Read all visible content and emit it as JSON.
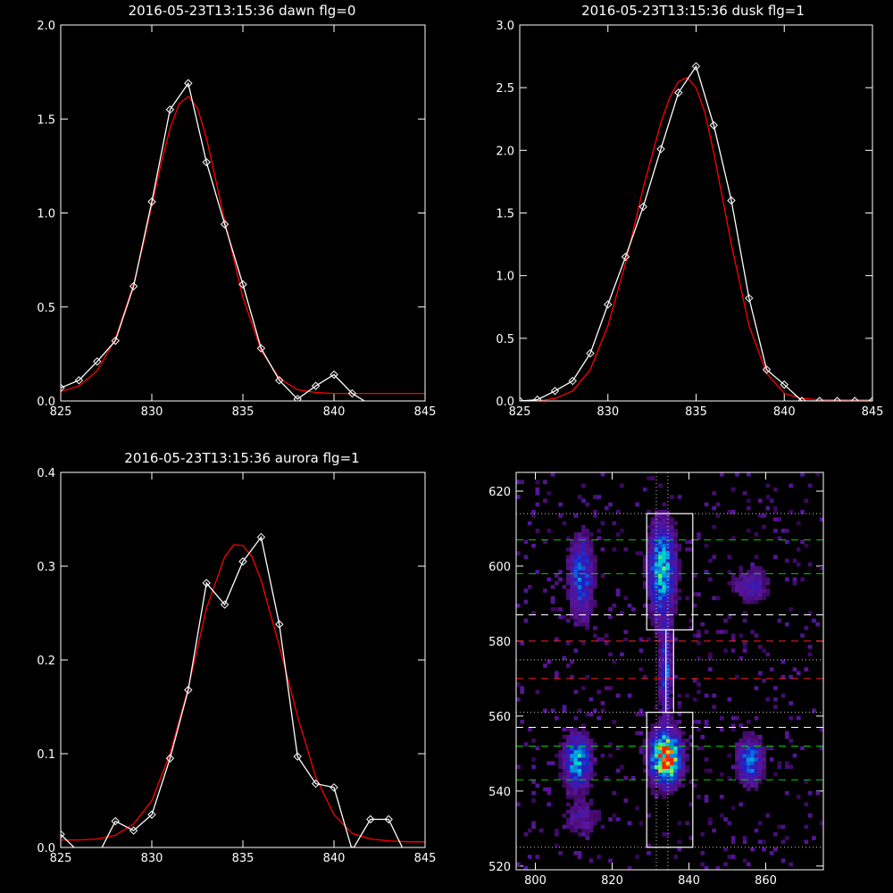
{
  "chart_data": [
    {
      "type": "line",
      "title": "2016-05-23T13:15:36 dawn flg=0",
      "xlim": [
        825,
        845
      ],
      "ylim": [
        0,
        2.0
      ],
      "xticks": [
        825,
        830,
        835,
        840,
        845
      ],
      "yticks": [
        0.0,
        0.5,
        1.0,
        1.5,
        2.0
      ],
      "xtick_labels": [
        "825",
        "830",
        "835",
        "840",
        "845"
      ],
      "ytick_labels": [
        "0.0",
        "0.5",
        "1.0",
        "1.5",
        "2.0"
      ],
      "series": [
        {
          "color": "#ffffff",
          "marker": "diamond",
          "x": [
            825,
            826,
            827,
            828,
            829,
            830,
            831,
            832,
            833,
            834,
            835,
            836,
            837,
            838,
            839,
            840,
            841,
            842,
            843,
            844,
            845
          ],
          "y": [
            0.07,
            0.11,
            0.21,
            0.32,
            0.61,
            1.06,
            1.55,
            1.69,
            1.27,
            0.94,
            0.62,
            0.28,
            0.11,
            0.01,
            0.08,
            0.14,
            0.04,
            -0.02,
            -0.02,
            -0.02,
            -0.02
          ]
        },
        {
          "color": "#ff0000",
          "marker": "none",
          "x": [
            825,
            826,
            827,
            828,
            829,
            829.5,
            830,
            830.5,
            831,
            831.5,
            832,
            832.5,
            833,
            833.5,
            834,
            835,
            836,
            837,
            838,
            839,
            840,
            841,
            842,
            843,
            844,
            845
          ],
          "y": [
            0.05,
            0.08,
            0.16,
            0.33,
            0.62,
            0.82,
            1.04,
            1.26,
            1.45,
            1.58,
            1.62,
            1.56,
            1.4,
            1.18,
            0.96,
            0.55,
            0.27,
            0.12,
            0.06,
            0.045,
            0.04,
            0.04,
            0.04,
            0.04,
            0.04,
            0.04
          ]
        }
      ]
    },
    {
      "type": "line",
      "title": "2016-05-23T13:15:36 dusk flg=1",
      "xlim": [
        825,
        845
      ],
      "ylim": [
        0,
        3.0
      ],
      "xticks": [
        825,
        830,
        835,
        840,
        845
      ],
      "yticks": [
        0.0,
        0.5,
        1.0,
        1.5,
        2.0,
        2.5,
        3.0
      ],
      "xtick_labels": [
        "825",
        "830",
        "835",
        "840",
        "845"
      ],
      "ytick_labels": [
        "0.0",
        "0.5",
        "1.0",
        "1.5",
        "2.0",
        "2.5",
        "3.0"
      ],
      "series": [
        {
          "color": "#ffffff",
          "marker": "diamond",
          "x": [
            825,
            826,
            827,
            828,
            829,
            830,
            831,
            832,
            833,
            834,
            835,
            836,
            837,
            838,
            839,
            840,
            841,
            842,
            843,
            844,
            845
          ],
          "y": [
            0.0,
            0.01,
            0.08,
            0.16,
            0.38,
            0.77,
            1.15,
            1.55,
            2.01,
            2.46,
            2.67,
            2.2,
            1.6,
            0.82,
            0.25,
            0.13,
            0.0,
            0.0,
            0.0,
            0.0,
            0.0
          ]
        },
        {
          "color": "#ff0000",
          "marker": "none",
          "x": [
            825,
            826,
            827,
            828,
            829,
            830,
            831,
            832,
            833,
            833.5,
            834,
            834.5,
            835,
            835.5,
            836,
            837,
            838,
            839,
            840,
            841,
            842,
            843,
            844,
            845
          ],
          "y": [
            0.0,
            0.0,
            0.02,
            0.08,
            0.25,
            0.6,
            1.1,
            1.7,
            2.22,
            2.42,
            2.55,
            2.58,
            2.5,
            2.3,
            1.98,
            1.25,
            0.6,
            0.22,
            0.06,
            0.02,
            0.01,
            0.01,
            0.01,
            0.01
          ]
        }
      ]
    },
    {
      "type": "line",
      "title": "2016-05-23T13:15:36 aurora flg=1",
      "xlim": [
        825,
        845
      ],
      "ylim": [
        0,
        0.4
      ],
      "xticks": [
        825,
        830,
        835,
        840,
        845
      ],
      "yticks": [
        0.0,
        0.1,
        0.2,
        0.3,
        0.4
      ],
      "xtick_labels": [
        "825",
        "830",
        "835",
        "840",
        "845"
      ],
      "ytick_labels": [
        "0.0",
        "0.1",
        "0.2",
        "0.3",
        "0.4"
      ],
      "series": [
        {
          "color": "#ffffff",
          "marker": "diamond",
          "x": [
            825,
            826,
            827,
            828,
            829,
            830,
            831,
            832,
            833,
            834,
            835,
            836,
            837,
            838,
            839,
            840,
            841,
            842,
            843,
            844,
            845
          ],
          "y": [
            0.014,
            -0.005,
            -0.01,
            0.028,
            0.018,
            0.035,
            0.095,
            0.168,
            0.282,
            0.259,
            0.305,
            0.331,
            0.238,
            0.097,
            0.068,
            0.064,
            -0.003,
            0.03,
            0.03,
            -0.01,
            -0.02
          ]
        },
        {
          "color": "#ff0000",
          "marker": "none",
          "x": [
            825,
            826,
            827,
            828,
            829,
            830,
            831,
            832,
            833,
            834,
            834.5,
            835,
            835.5,
            836,
            837,
            838,
            839,
            840,
            841,
            842,
            843,
            844,
            845
          ],
          "y": [
            0.008,
            0.008,
            0.009,
            0.013,
            0.025,
            0.05,
            0.1,
            0.17,
            0.255,
            0.31,
            0.323,
            0.322,
            0.31,
            0.285,
            0.215,
            0.14,
            0.075,
            0.035,
            0.015,
            0.009,
            0.007,
            0.006,
            0.006
          ]
        }
      ]
    },
    {
      "type": "heatmap",
      "xlim": [
        795,
        875
      ],
      "ylim": [
        519,
        625
      ],
      "xticks": [
        800,
        820,
        840,
        860
      ],
      "yticks": [
        520,
        540,
        560,
        580,
        600,
        620
      ],
      "xtick_labels": [
        "800",
        "820",
        "840",
        "860"
      ],
      "ytick_labels": [
        "520",
        "540",
        "560",
        "580",
        "600",
        "620"
      ],
      "colors": {
        "white_line": "#ffffff",
        "green_line": "#00d000",
        "red_line": "#ff2020",
        "dotted_line": "#cccccc"
      },
      "horizontal_lines": [
        {
          "y": 614,
          "style": "dotted",
          "color": "#cccccc"
        },
        {
          "y": 607,
          "style": "dashed",
          "color": "#00d000"
        },
        {
          "y": 598,
          "style": "dashed",
          "color": "#00d000"
        },
        {
          "y": 587,
          "style": "dashed",
          "color": "#ffffff"
        },
        {
          "y": 580,
          "style": "dashed",
          "color": "#ff2020"
        },
        {
          "y": 575,
          "style": "dotted",
          "color": "#cccccc"
        },
        {
          "y": 570,
          "style": "dashed",
          "color": "#ff2020"
        },
        {
          "y": 561,
          "style": "dotted",
          "color": "#cccccc"
        },
        {
          "y": 557,
          "style": "dashed",
          "color": "#ffffff"
        },
        {
          "y": 552,
          "style": "dashed",
          "color": "#00d000"
        },
        {
          "y": 543,
          "style": "dashed",
          "color": "#00d000"
        },
        {
          "y": 525,
          "style": "dotted",
          "color": "#cccccc"
        }
      ],
      "vertical_lines": [
        {
          "x": 831.5,
          "style": "dotted",
          "color": "#cccccc"
        },
        {
          "x": 834.5,
          "style": "dotted",
          "color": "#cccccc"
        }
      ],
      "boxes": [
        {
          "x0": 829,
          "x1": 841,
          "y0": 583,
          "y1": 614
        },
        {
          "x0": 829,
          "x1": 841,
          "y0": 525,
          "y1": 561
        },
        {
          "x0": 834,
          "x1": 836,
          "y0": 561,
          "y1": 583
        }
      ],
      "blobs": [
        {
          "cx": 811,
          "cy": 548,
          "sx": 2.2,
          "sy": 4.5,
          "peak": 0.48
        },
        {
          "cx": 812,
          "cy": 597,
          "sx": 2.0,
          "sy": 7,
          "peak": 0.36
        },
        {
          "cx": 834,
          "cy": 549,
          "sx": 2.4,
          "sy": 4.2,
          "peak": 1.0
        },
        {
          "cx": 833,
          "cy": 599,
          "sx": 2.2,
          "sy": 8,
          "peak": 0.52
        },
        {
          "cx": 834,
          "cy": 572,
          "sx": 1.0,
          "sy": 8,
          "peak": 0.32
        },
        {
          "cx": 856,
          "cy": 548,
          "sx": 2.0,
          "sy": 4,
          "peak": 0.4
        },
        {
          "cx": 856,
          "cy": 595,
          "sx": 3.0,
          "sy": 3,
          "peak": 0.2
        },
        {
          "cx": 812,
          "cy": 533,
          "sx": 3.0,
          "sy": 3,
          "peak": 0.15
        }
      ]
    }
  ]
}
